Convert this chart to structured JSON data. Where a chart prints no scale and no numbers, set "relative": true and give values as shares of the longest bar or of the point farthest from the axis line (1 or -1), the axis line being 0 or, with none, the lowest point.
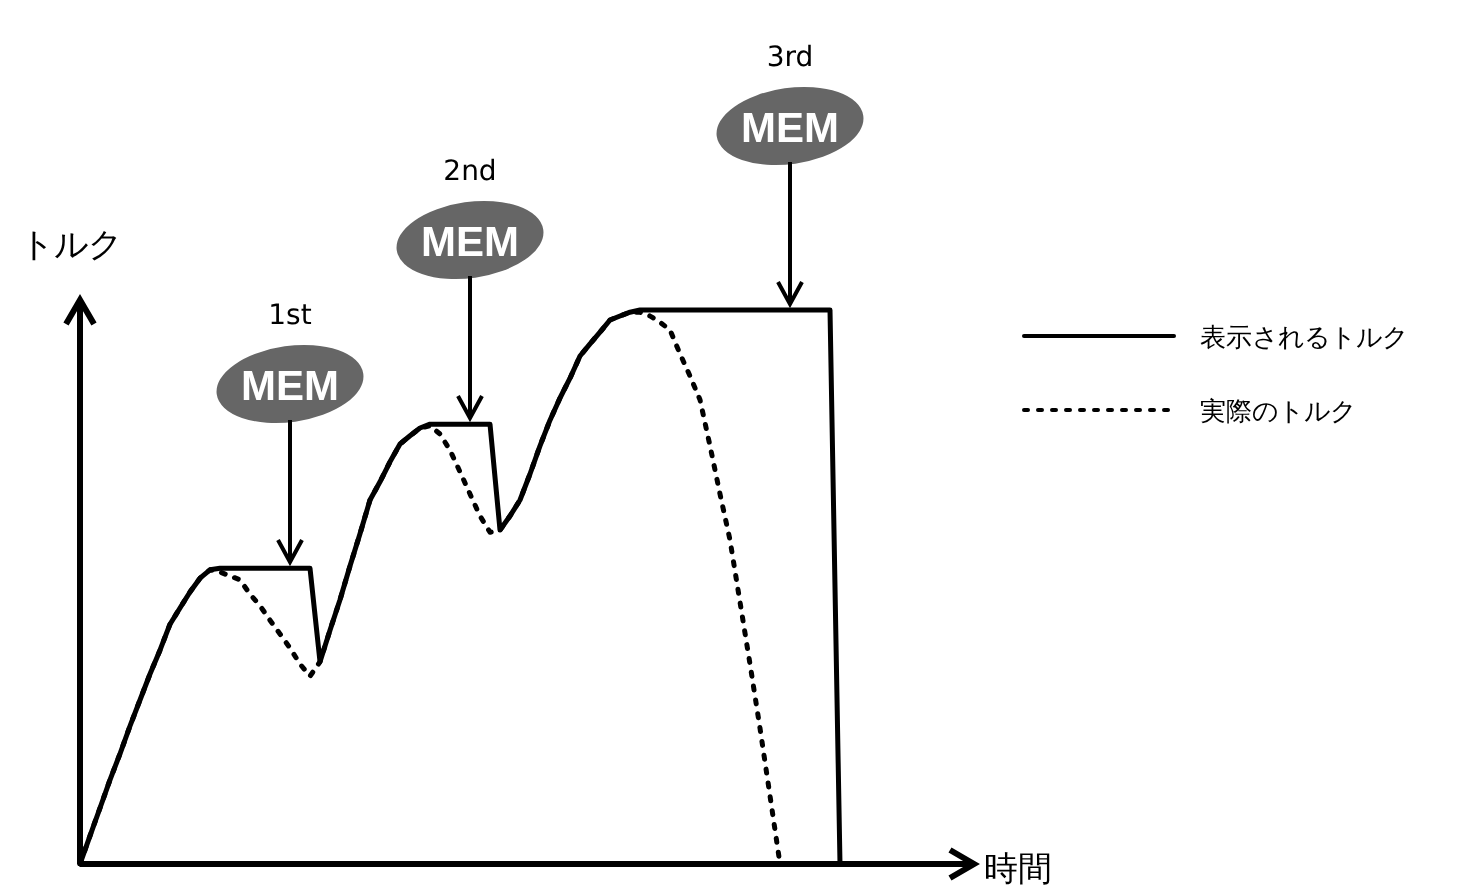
{
  "chart_data": {
    "type": "line",
    "relative": true,
    "xlabel": "時間",
    "ylabel": "トルク",
    "legend": "right",
    "marker": "none",
    "categories": [
      null,
      null,
      null,
      null,
      null,
      null,
      null,
      null,
      null,
      null,
      null,
      null,
      null,
      null,
      null,
      null,
      null,
      null,
      null,
      null,
      null,
      null,
      null,
      null,
      null,
      null,
      null,
      null,
      null,
      null,
      null,
      null,
      null,
      null,
      null,
      null,
      null,
      null,
      null,
      null,
      null,
      null,
      null,
      null,
      null,
      null,
      null,
      null,
      null,
      null,
      null,
      null,
      null,
      null,
      null,
      null,
      null,
      null,
      null,
      null,
      null,
      null,
      null,
      null,
      null,
      null,
      null,
      null,
      null,
      null,
      null,
      null,
      null,
      null,
      null,
      null,
      null
    ],
    "series": [
      {
        "name": "表示されるトルク",
        "color": "#000000",
        "line_style": "solid",
        "values": [
          0,
          0.051,
          0.101,
          0.152,
          0.199,
          0.249,
          0.296,
          0.343,
          0.386,
          0.433,
          0.462,
          0.491,
          0.516,
          0.531,
          0.534,
          0.534,
          0.534,
          0.534,
          0.534,
          0.534,
          0.534,
          0.534,
          0.534,
          0.534,
          0.365,
          0.422,
          0.477,
          0.538,
          0.596,
          0.657,
          0.69,
          0.726,
          0.758,
          0.773,
          0.787,
          0.794,
          0.794,
          0.794,
          0.794,
          0.794,
          0.794,
          0.794,
          0.603,
          0.628,
          0.657,
          0.704,
          0.755,
          0.801,
          0.841,
          0.877,
          0.917,
          0.939,
          0.96,
          0.982,
          0.989,
          0.996,
          1,
          1,
          1,
          1,
          1,
          1,
          1,
          1,
          1,
          1,
          1,
          1,
          1,
          1,
          1,
          1,
          1,
          1,
          1,
          1,
          0
        ]
      },
      {
        "name": "実際のトルク",
        "color": "#000000",
        "line_style": "dotted",
        "values": [
          0,
          0.051,
          0.101,
          0.152,
          0.199,
          0.249,
          0.296,
          0.343,
          0.386,
          0.433,
          0.462,
          0.491,
          0.516,
          0.531,
          0.527,
          0.52,
          0.513,
          0.487,
          0.466,
          0.44,
          0.415,
          0.39,
          0.361,
          0.339,
          0.365,
          0.422,
          0.477,
          0.538,
          0.596,
          0.657,
          0.69,
          0.726,
          0.758,
          0.773,
          0.787,
          0.791,
          0.776,
          0.747,
          0.708,
          0.668,
          0.628,
          0.599,
          0.603,
          0.628,
          0.657,
          0.704,
          0.755,
          0.801,
          0.841,
          0.877,
          0.917,
          0.939,
          0.96,
          0.982,
          0.989,
          0.996,
          0.996,
          0.989,
          0.978,
          0.964,
          0.921,
          0.881,
          0.838,
          0.755,
          0.668,
          0.585,
          0.473,
          0.361,
          0.245,
          0.123,
          0,
          null,
          null,
          null,
          null,
          null,
          null
        ]
      }
    ],
    "annotations": [
      "1st",
      "MEM",
      "2nd",
      "MEM",
      "3rd",
      "MEM"
    ]
  }
}
